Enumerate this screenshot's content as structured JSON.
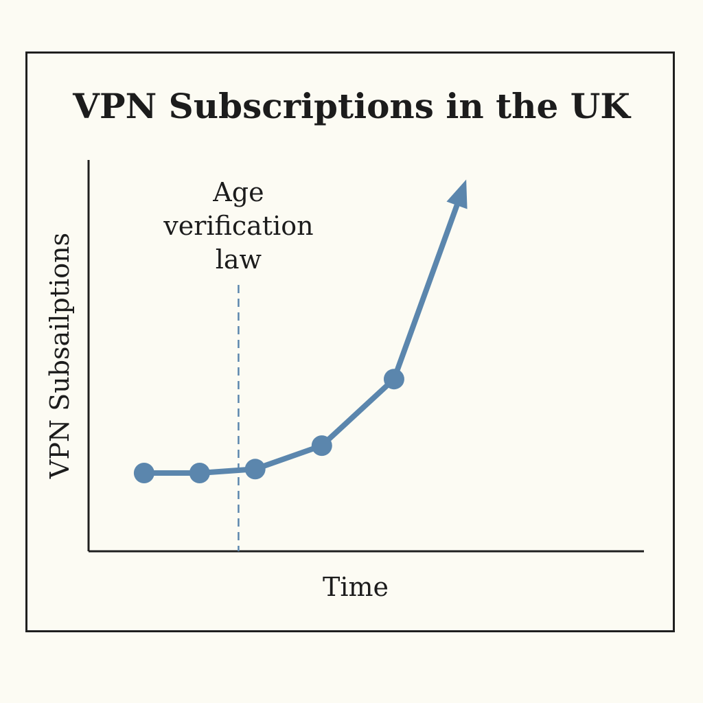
{
  "colors": {
    "background": "#fcfbf3",
    "frame": "#1f1f1f",
    "axis": "#1f1f1f",
    "series": "#5b86ad",
    "annotation_line": "#5b86ad",
    "text": "#1c1c1c"
  },
  "chart_data": {
    "type": "line",
    "title": "VPN Subscriptions in the UK",
    "xlabel": "Time",
    "ylabel": "VPN Subsailptions",
    "grid": false,
    "legend": "none",
    "xlim": [
      0,
      10
    ],
    "ylim": [
      0,
      10
    ],
    "series": [
      {
        "x": [
          1,
          2,
          3,
          4.2,
          5.5
        ],
        "y": [
          2.0,
          2.0,
          2.1,
          2.7,
          4.4
        ],
        "end_arrow": {
          "x": 6.8,
          "y": 9.5
        }
      }
    ],
    "annotations": [
      {
        "type": "vertical-dashed-line",
        "x": 2.7,
        "label_lines": [
          "Age",
          "verification",
          "law"
        ]
      }
    ]
  }
}
